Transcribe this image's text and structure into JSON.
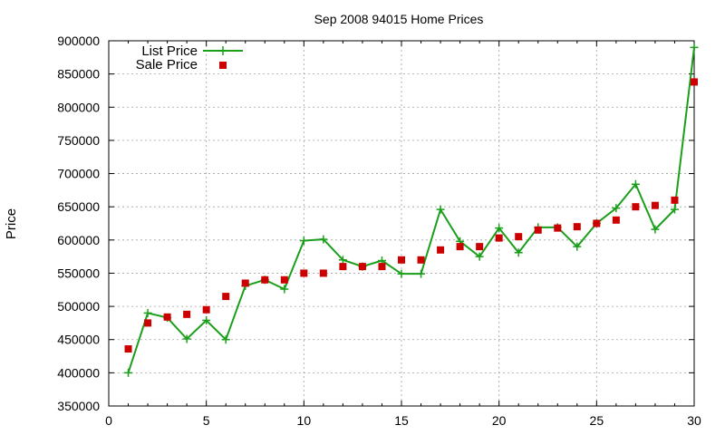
{
  "chart_data": {
    "type": "line",
    "title": "Sep 2008 94015 Home Prices",
    "xlabel": "",
    "ylabel": "Price",
    "xlim": [
      0,
      30
    ],
    "ylim": [
      350000,
      900000
    ],
    "xticks": [
      0,
      5,
      10,
      15,
      20,
      25,
      30
    ],
    "yticks": [
      350000,
      400000,
      450000,
      500000,
      550000,
      600000,
      650000,
      700000,
      750000,
      800000,
      850000,
      900000
    ],
    "grid": true,
    "legend_position": "top-left",
    "x": [
      1,
      2,
      3,
      4,
      5,
      6,
      7,
      8,
      9,
      10,
      11,
      12,
      13,
      14,
      15,
      16,
      17,
      18,
      19,
      20,
      21,
      22,
      23,
      24,
      25,
      26,
      27,
      28,
      29,
      30
    ],
    "series": [
      {
        "name": "List Price",
        "style": "line-with-plus-markers",
        "color": "#1a9f1a",
        "values": [
          400000,
          490000,
          483000,
          451000,
          479000,
          450000,
          531000,
          540000,
          526000,
          599000,
          601000,
          570000,
          560000,
          569000,
          549000,
          549000,
          646000,
          598000,
          575000,
          618000,
          581000,
          619000,
          619000,
          590000,
          625000,
          648000,
          684000,
          616000,
          646000,
          890000
        ]
      },
      {
        "name": "Sale Price",
        "style": "square-markers",
        "color": "#cc0000",
        "values": [
          436000,
          475000,
          484000,
          488000,
          495000,
          515000,
          535000,
          540000,
          540000,
          550000,
          550000,
          560000,
          560000,
          560000,
          570000,
          570000,
          585000,
          590000,
          590000,
          603000,
          605000,
          615000,
          618000,
          620000,
          625000,
          630000,
          650000,
          652000,
          660000,
          838000
        ]
      }
    ]
  }
}
